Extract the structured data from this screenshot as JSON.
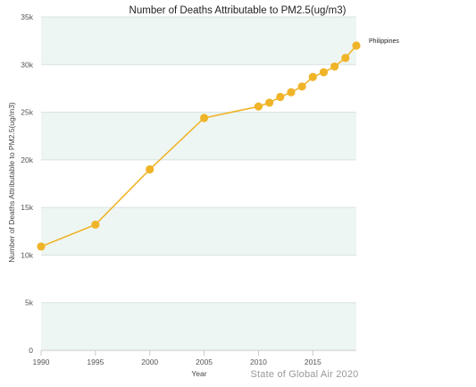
{
  "chart_data": {
    "type": "line",
    "title": "Number of Deaths Attributable to PM2.5(ug/m3)",
    "xlabel": "Year",
    "ylabel": "Number of Deaths Attributable to PM2.5(ug/m3)",
    "credit": "State of Global Air 2020",
    "xlim": [
      1990,
      2019
    ],
    "ylim": [
      0,
      35000
    ],
    "x_ticks": [
      1990,
      1995,
      2000,
      2005,
      2010,
      2015
    ],
    "y_ticks": [
      0,
      5000,
      10000,
      15000,
      20000,
      25000,
      30000,
      35000
    ],
    "y_tick_labels": [
      "0",
      "5k",
      "10k",
      "15k",
      "20k",
      "25k",
      "30k",
      "35k"
    ],
    "grid": "horizontal bands",
    "legend_position": "right",
    "series": [
      {
        "name": "Philippines",
        "color": "#f0b429",
        "x": [
          1990,
          1995,
          2000,
          2005,
          2010,
          2011,
          2012,
          2013,
          2014,
          2015,
          2016,
          2017,
          2018,
          2019
        ],
        "y": [
          10900,
          13200,
          19000,
          24400,
          25600,
          26000,
          26600,
          27100,
          27700,
          28700,
          29200,
          29800,
          30700,
          32000
        ]
      }
    ],
    "band_color": "#eef6f4",
    "gridline_color": "#d6e2df",
    "axis_color": "#c9c9c9"
  }
}
